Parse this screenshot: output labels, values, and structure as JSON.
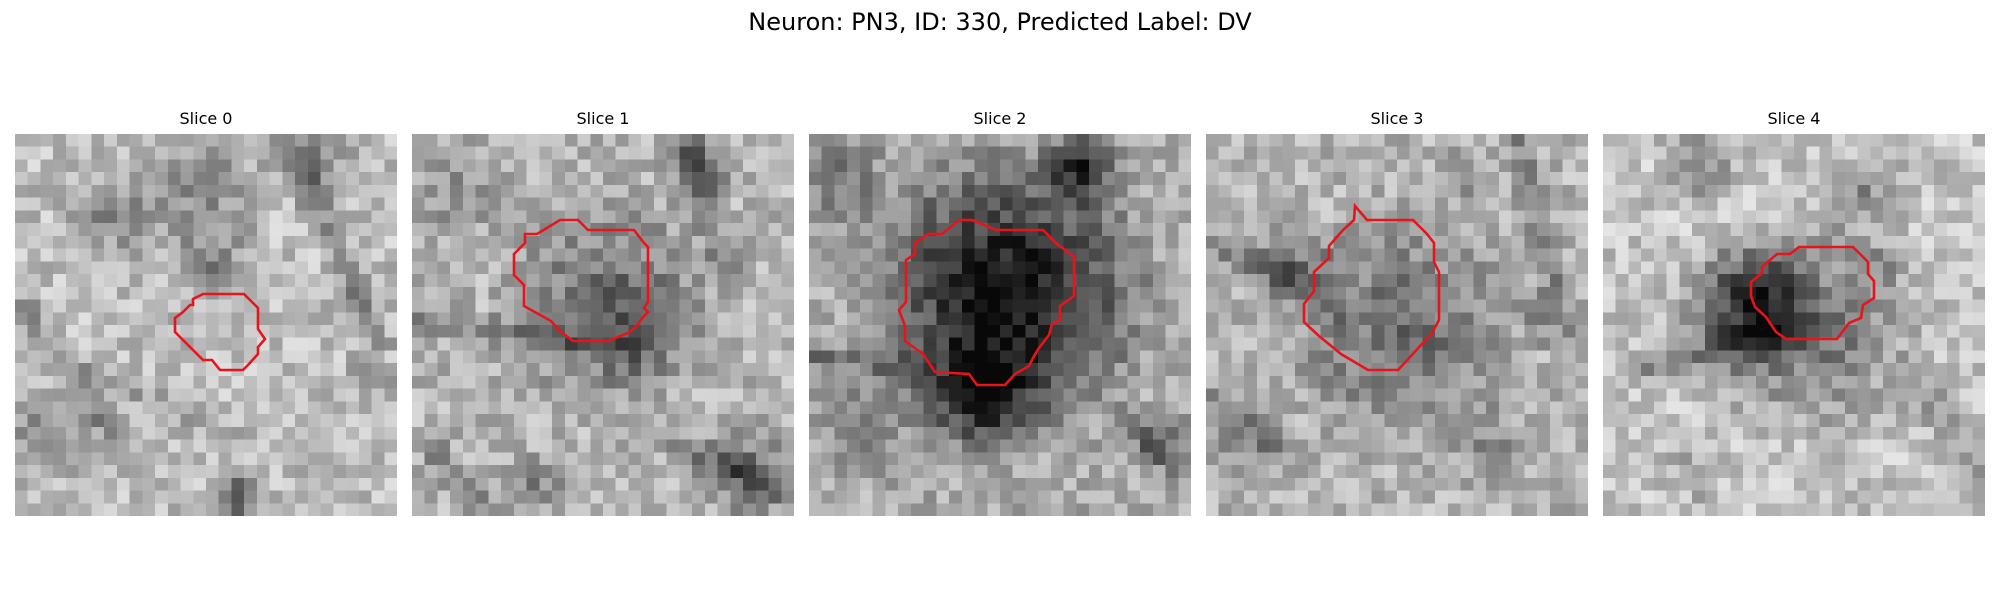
{
  "figure": {
    "title": "Neuron: PN3, ID: 330, Predicted Label: DV"
  },
  "panels": [
    {
      "title": "Slice 0"
    },
    {
      "title": "Slice 1"
    },
    {
      "title": "Slice 2"
    },
    {
      "title": "Slice 3"
    },
    {
      "title": "Slice 4"
    }
  ],
  "colors": {
    "contour": "#e8141c",
    "background": "#ffffff"
  }
}
